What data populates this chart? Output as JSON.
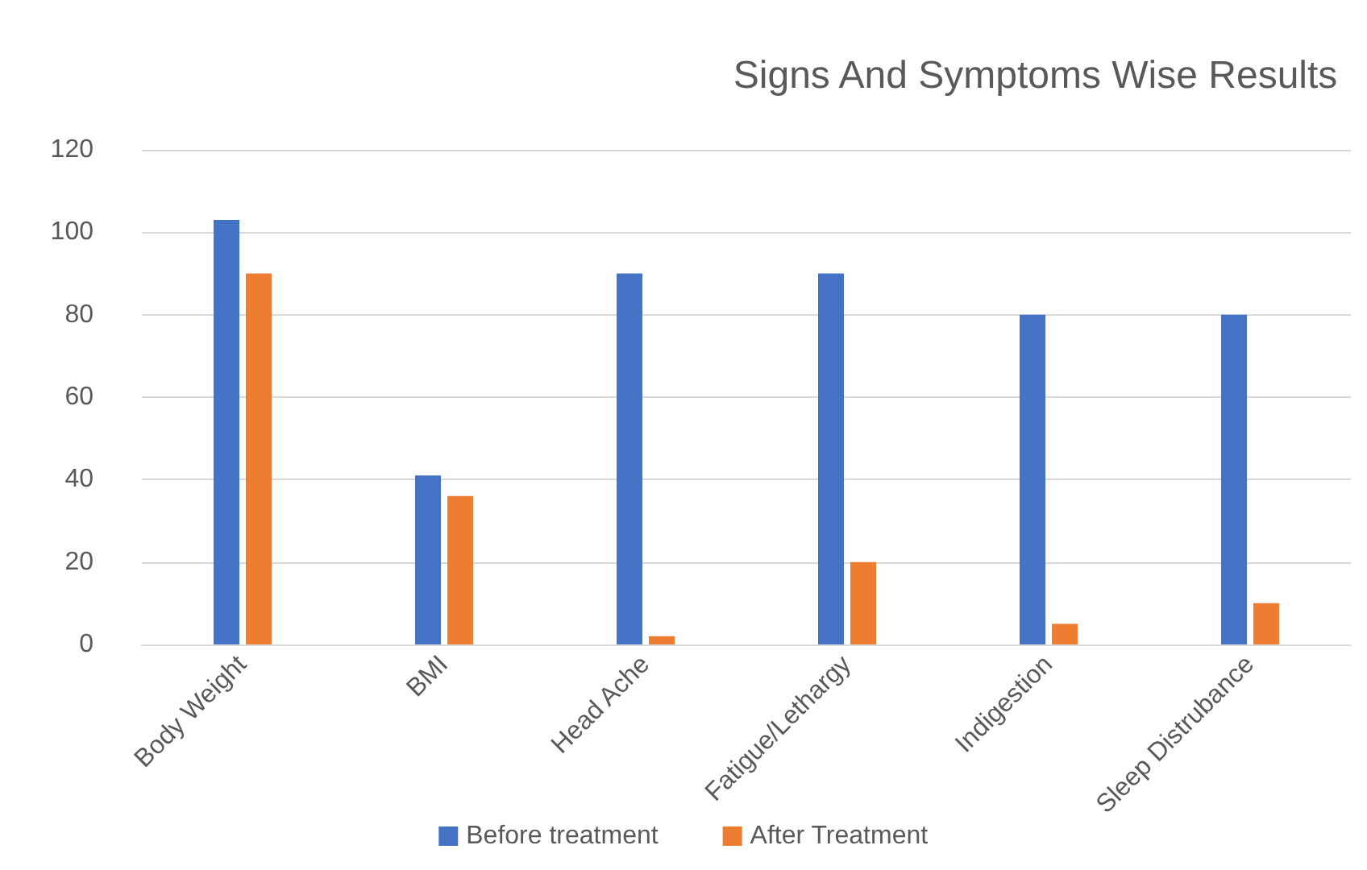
{
  "chart_data": {
    "type": "bar",
    "title": "Signs And Symptoms Wise Results",
    "categories": [
      "Body Weight",
      "BMI",
      "Head Ache",
      "Fatigue/Lethargy",
      "Indigestion",
      "Sleep Distrubance"
    ],
    "series": [
      {
        "name": "Before treatment",
        "color": "#4472c4",
        "values": [
          103,
          41,
          90,
          90,
          80,
          80
        ]
      },
      {
        "name": "After Treatment",
        "color": "#ed7d31",
        "values": [
          90,
          36,
          2,
          20,
          5,
          10
        ]
      }
    ],
    "ylim": [
      0,
      120
    ],
    "yticks": [
      0,
      20,
      40,
      60,
      80,
      100,
      120
    ],
    "grid": "y",
    "legend": "bottom"
  }
}
